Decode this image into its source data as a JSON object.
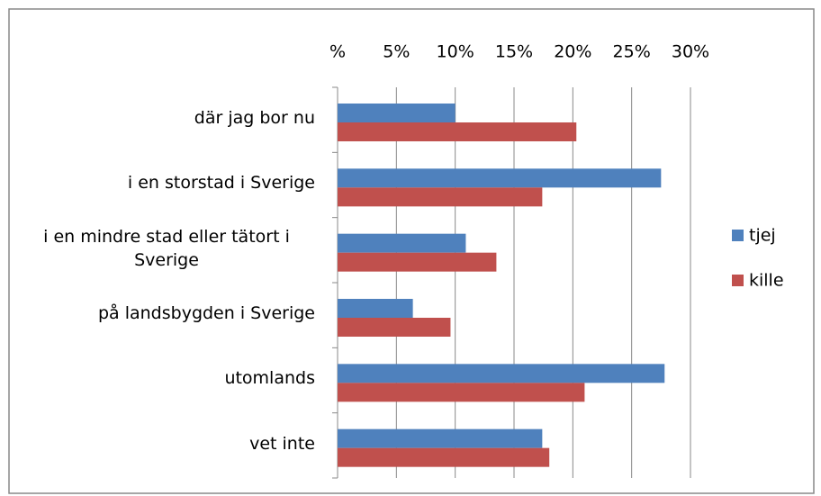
{
  "chart_data": {
    "type": "barh",
    "categories": [
      "där jag bor nu",
      "i en storstad i Sverige",
      "i en mindre stad eller tätort i Sverige",
      "på landsbygden i Sverige",
      "utomlands",
      "vet inte"
    ],
    "series": [
      {
        "name": "tjej",
        "color": "#4f81bd",
        "values": [
          10.0,
          27.5,
          10.9,
          6.4,
          27.8,
          17.4
        ]
      },
      {
        "name": "kille",
        "color": "#c0504d",
        "values": [
          20.3,
          17.4,
          13.5,
          9.6,
          21.0,
          18.0
        ]
      }
    ],
    "xlim": [
      0,
      30
    ],
    "xticks": [
      {
        "value": 0,
        "label": "%"
      },
      {
        "value": 5,
        "label": "5%"
      },
      {
        "value": 10,
        "label": "10%"
      },
      {
        "value": 15,
        "label": "15%"
      },
      {
        "value": 20,
        "label": "20%"
      },
      {
        "value": 25,
        "label": "25%"
      },
      {
        "value": 30,
        "label": "30%"
      }
    ],
    "grid": true,
    "legend": "right"
  }
}
